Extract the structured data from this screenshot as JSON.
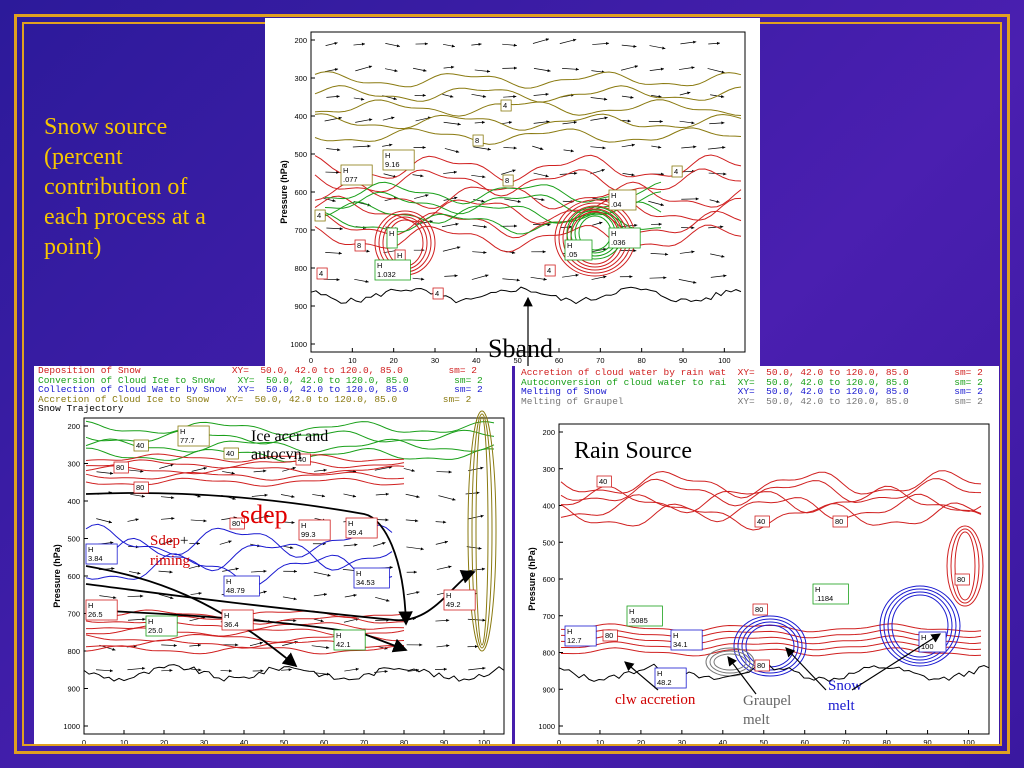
{
  "slide": {
    "left_text": "Snow source (percent contribution of each process at a point)"
  },
  "top_panel": {
    "ylabel": "Pressure (hPa)",
    "y_ticks": [
      "200",
      "300",
      "400",
      "500",
      "600",
      "700",
      "800",
      "900",
      "1000"
    ],
    "x_ticks": [
      "0",
      "10",
      "20",
      "30",
      "40",
      "50",
      "60",
      "70",
      "80",
      "90",
      "100"
    ],
    "contour_labels": [
      "4",
      "8",
      "H 9.16",
      "8",
      "H .077",
      "H .04",
      "4",
      "4",
      "H",
      "H",
      "H .05",
      "H .036",
      "4",
      "4",
      "8",
      "H 1.032",
      "4"
    ]
  },
  "bottom_left": {
    "legend": [
      {
        "text": "Deposition of Snow                XY=  50.0, 42.0 to 120.0, 85.0        sm= 2",
        "color": "#d02020"
      },
      {
        "text": "Conversion of Cloud Ice to Snow    XY=  50.0, 42.0 to 120.0, 85.0        sm= 2",
        "color": "#1aa01a"
      },
      {
        "text": "Collection of Cloud Water by Snow  XY=  50.0, 42.0 to 120.0, 85.0        sm= 2",
        "color": "#1a1ad0"
      },
      {
        "text": "Accretion of Cloud Ice to Snow   XY=  50.0, 42.0 to 120.0, 85.0        sm= 2",
        "color": "#8a7a10"
      },
      {
        "text": "Snow Trajectory",
        "color": "#000000"
      }
    ],
    "ylabel": "Pressure (hPa)",
    "y_ticks": [
      "200",
      "300",
      "400",
      "500",
      "600",
      "700",
      "800",
      "900",
      "1000"
    ],
    "x_ticks": [
      "0",
      "10",
      "20",
      "30",
      "40",
      "50",
      "60",
      "70",
      "80",
      "90",
      "100"
    ],
    "contour_labels": [
      "40",
      "H 77.7",
      "80",
      "40",
      "80",
      "40",
      "80",
      "H 99.3",
      "H 99.4",
      "H 3.84",
      "H 48.79",
      "H 34.53",
      "H 26.5",
      "H 36.4",
      "H 25.0",
      "H 42.1",
      "H 49.2"
    ]
  },
  "bottom_right": {
    "legend": [
      {
        "text": "Accretion of cloud water by rain wat  XY=  50.0, 42.0 to 120.0, 85.0        sm= 2",
        "color": "#d02020"
      },
      {
        "text": "Autoconversion of cloud water to rai  XY=  50.0, 42.0 to 120.0, 85.0        sm= 2",
        "color": "#1aa01a"
      },
      {
        "text": "Melting of Snow                       XY=  50.0, 42.0 to 120.0, 85.0        sm= 2",
        "color": "#1a1ad0"
      },
      {
        "text": "Melting of Graupel                    XY=  50.0, 42.0 to 120.0, 85.0        sm= 2",
        "color": "#777777"
      }
    ],
    "ylabel": "Pressure (hPa)",
    "y_ticks": [
      "200",
      "300",
      "400",
      "500",
      "600",
      "700",
      "800",
      "900",
      "1000"
    ],
    "x_ticks": [
      "0",
      "10",
      "20",
      "30",
      "40",
      "50",
      "60",
      "70",
      "80",
      "90",
      "100"
    ],
    "contour_labels": [
      "40",
      "40",
      "80",
      "80",
      "H .1184",
      "H .5085",
      "H 12.7",
      "80",
      "H 34.1",
      "H 48.2",
      "80",
      "H 100",
      "80"
    ]
  },
  "annotations": {
    "sband": "Sband",
    "ice_accr": "Ice accr and autocvn",
    "sdep": "sdep",
    "sdep_riming_1": "Sdep",
    "sdep_riming_plus": "+",
    "sdep_riming_2": "riming",
    "rain_source": "Rain Source",
    "clw_accretion": "clw accretion",
    "graupel_melt": "Graupel melt",
    "snow_melt": "Snow melt"
  },
  "colors": {
    "background": "#3a1fa8",
    "frame": "#e0a020",
    "title_text": "#f7c600",
    "red": "#d02020",
    "green": "#1aa01a",
    "blue": "#1a1ad0",
    "olive": "#8a7a10"
  }
}
